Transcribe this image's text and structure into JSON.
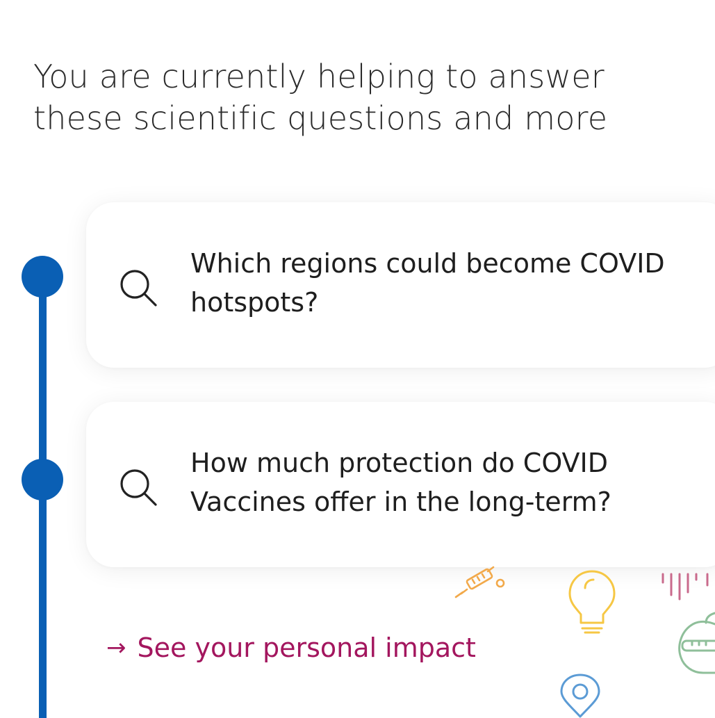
{
  "heading": "You are currently helping to answer these scientific questions and more",
  "questions": [
    {
      "text": "Which regions could become COVID hotspots?"
    },
    {
      "text": "How much protection do COVID Vaccines offer in the long-term?"
    }
  ],
  "link": {
    "arrow": "→",
    "label": "See your personal impact"
  },
  "colors": {
    "timeline": "#0a5fb4",
    "link": "#a3165e",
    "syringe": "#f2a94a",
    "bulb": "#f6c744",
    "pin": "#5b9bd5",
    "bars": "#c96a8c",
    "apple": "#8fbf9a"
  },
  "icons": [
    "search-icon",
    "syringe-icon",
    "lightbulb-icon",
    "location-pin-icon",
    "apple-icon",
    "bar-marks-icon"
  ]
}
